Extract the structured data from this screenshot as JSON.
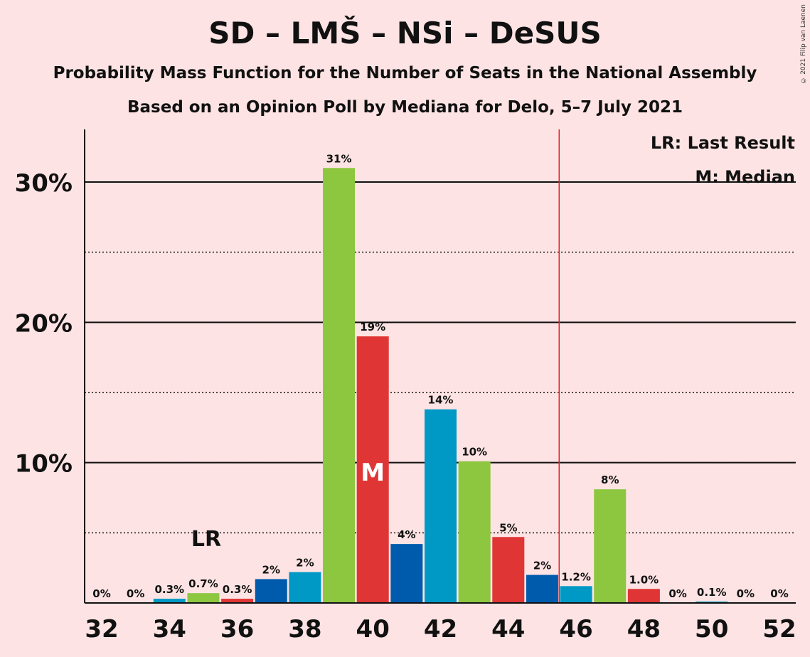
{
  "chart_data": {
    "type": "bar",
    "title": "SD – LMŠ – NSi – DeSUS",
    "subtitle": "Probability Mass Function for the Number of Seats in the National Assembly",
    "subtitle2": "Based on an Opinion Poll by Mediana for Delo, 5–7 July 2021",
    "copyright": "© 2021 Filip van Laenen",
    "x": [
      32,
      33,
      34,
      35,
      36,
      37,
      38,
      39,
      40,
      41,
      42,
      43,
      44,
      45,
      46,
      47,
      48,
      49,
      50,
      51,
      52
    ],
    "values": [
      0,
      0,
      0.3,
      0.7,
      0.3,
      1.7,
      2.2,
      31,
      19,
      4.2,
      13.8,
      10.1,
      4.7,
      2,
      1.2,
      8.1,
      1.0,
      0,
      0.1,
      0,
      0
    ],
    "labels": [
      "0%",
      "0%",
      "0.3%",
      "0.7%",
      "0.3%",
      "2%",
      "2%",
      "31%",
      "19%",
      "4%",
      "14%",
      "10%",
      "5%",
      "2%",
      "1.2%",
      "8%",
      "1.0%",
      "0%",
      "0.1%",
      "0%",
      "0%"
    ],
    "bar_colors": [
      "#0099C6",
      "#E03535",
      "#0099C6",
      "#8DC63F",
      "#E03535",
      "#005BAC",
      "#0099C6",
      "#8DC63F",
      "#E03535",
      "#005BAC",
      "#0099C6",
      "#8DC63F",
      "#E03535",
      "#005BAC",
      "#0099C6",
      "#8DC63F",
      "#E03535",
      "#005BAC",
      "#0099C6",
      "#8DC63F",
      "#E03535"
    ],
    "xticks": [
      "32",
      "34",
      "36",
      "38",
      "40",
      "42",
      "44",
      "46",
      "48",
      "50",
      "52"
    ],
    "xtick_values": [
      32,
      34,
      36,
      38,
      40,
      42,
      44,
      46,
      48,
      50,
      52
    ],
    "yticks": [
      "10%",
      "20%",
      "30%"
    ],
    "ytick_values": [
      10,
      20,
      30
    ],
    "ylim": [
      0,
      33.7
    ],
    "majority_line_x": 45.5,
    "last_result_x": 35,
    "last_result_label": "LR",
    "median_x": 40,
    "median_label": "M",
    "legend": [
      "LR: Last Result",
      "M: Median"
    ],
    "legend_position": "top-right",
    "colors": {
      "background": "#FDE3E3",
      "majority_line": "#E8202A"
    }
  }
}
